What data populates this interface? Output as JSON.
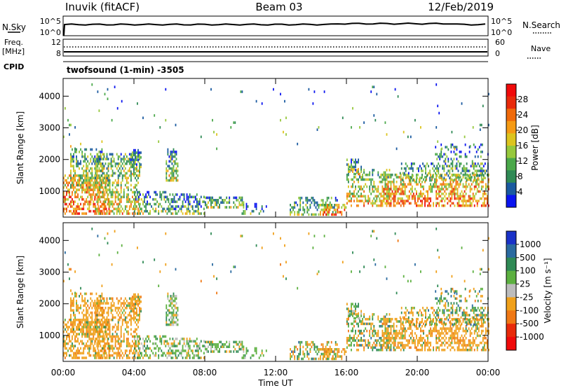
{
  "header": {
    "station": "Inuvik (fitACF)",
    "beam": "Beam 03",
    "date": "12/Feb/2019",
    "program": "twofsound (1-min) -3505"
  },
  "top_panels": {
    "nsky_label": "N.Sky",
    "nsky_top_tick": "10^5",
    "nsky_bottom_tick": "10^0",
    "nsearch_label": "N.Search",
    "nsearch_top_tick": "10^5",
    "nsearch_bottom_tick": "10^0",
    "freq_label_1": "Freq.",
    "freq_label_2": "[MHz]",
    "freq_top_tick": "12",
    "freq_bottom_tick": "8",
    "nave_label": "Nave",
    "nave_top_tick": "60",
    "nave_bottom_tick": "0",
    "cpid_label": "CPID"
  },
  "chart_data": [
    {
      "type": "heatmap",
      "name": "power",
      "ylabel": "Slant Range [km]",
      "xlabel": "",
      "yticks": [
        "1000",
        "2000",
        "3000",
        "4000"
      ],
      "ytick_values": [
        1000,
        2000,
        3000,
        4000
      ],
      "ylim": [
        180,
        4560
      ],
      "xlim_hours": [
        0,
        24
      ],
      "colorbar": {
        "label": "Power [dB]",
        "ticks": [
          "4",
          "8",
          "12",
          "16",
          "20",
          "24",
          "28"
        ],
        "tick_values": [
          4,
          8,
          12,
          16,
          20,
          24,
          28
        ],
        "range": [
          0,
          32
        ],
        "colors": [
          "#0a14f0",
          "#1a5aa0",
          "#2f8a55",
          "#4aa84a",
          "#96c83c",
          "#dcc41e",
          "#f59a14",
          "#f06a0a",
          "#e82a0a",
          "#f00a0a"
        ]
      }
    },
    {
      "type": "heatmap",
      "name": "velocity",
      "ylabel": "Slant Range [km]",
      "xlabel": "Time UT",
      "yticks": [
        "1000",
        "2000",
        "3000",
        "4000"
      ],
      "ytick_values": [
        1000,
        2000,
        3000,
        4000
      ],
      "ylim": [
        180,
        4560
      ],
      "xticks": [
        "00:00",
        "04:00",
        "08:00",
        "12:00",
        "16:00",
        "20:00",
        "00:00"
      ],
      "xtick_hours": [
        0,
        4,
        8,
        12,
        16,
        20,
        24
      ],
      "colorbar": {
        "label": "Velocity [m s⁻¹]",
        "ticks": [
          "1000",
          "500",
          "100",
          "25",
          "-25",
          "-100",
          "-500",
          "-1000"
        ],
        "colors": [
          "#1a32c8",
          "#2a6aa0",
          "#2f8a55",
          "#5cb040",
          "#bcbcbc",
          "#f0a01a",
          "#f07814",
          "#e82a0a",
          "#f00a0a"
        ]
      }
    }
  ],
  "timeline": {
    "time_label": "Time UT",
    "xticks": [
      "00:00",
      "04:00",
      "08:00",
      "12:00",
      "16:00",
      "20:00",
      "00:00"
    ]
  }
}
